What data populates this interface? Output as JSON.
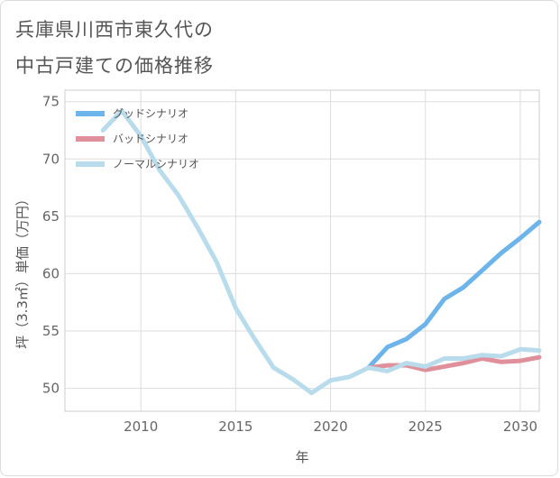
{
  "title": {
    "line1": "兵庫県川西市東久代の",
    "line2": "中古戸建ての価格推移"
  },
  "chart_data": {
    "type": "line",
    "title": "兵庫県川西市東久代の中古戸建ての価格推移",
    "xlabel": "年",
    "ylabel": "坪（3.3㎡）単価（万円）",
    "xlim": [
      2006,
      2031
    ],
    "ylim": [
      48,
      76
    ],
    "xticks": [
      2010,
      2015,
      2020,
      2025,
      2030
    ],
    "yticks": [
      50,
      55,
      60,
      65,
      70,
      75
    ],
    "grid": true,
    "legend_position": "top-left",
    "series": [
      {
        "name": "グッドシナリオ",
        "color": "#6cb4ea",
        "x": [
          2022,
          2023,
          2024,
          2025,
          2026,
          2027,
          2028,
          2029,
          2030,
          2031
        ],
        "values": [
          51.8,
          53.6,
          54.3,
          55.6,
          57.8,
          58.8,
          60.3,
          61.8,
          63.1,
          64.5
        ]
      },
      {
        "name": "バッドシナリオ",
        "color": "#e0909a",
        "x": [
          2022,
          2023,
          2024,
          2025,
          2026,
          2027,
          2028,
          2029,
          2030,
          2031
        ],
        "values": [
          51.8,
          52.0,
          52.0,
          51.6,
          51.9,
          52.2,
          52.6,
          52.3,
          52.4,
          52.7
        ]
      },
      {
        "name": "ノーマルシナリオ",
        "color": "#b8dcec",
        "x": [
          2008,
          2009,
          2010,
          2011,
          2012,
          2013,
          2014,
          2015,
          2016,
          2017,
          2018,
          2019,
          2020,
          2021,
          2022,
          2023,
          2024,
          2025,
          2026,
          2027,
          2028,
          2029,
          2030,
          2031
        ],
        "values": [
          72.5,
          74.2,
          72.0,
          69.0,
          66.8,
          64.0,
          61.0,
          57.0,
          54.3,
          51.8,
          50.8,
          49.6,
          50.7,
          51.0,
          51.8,
          51.5,
          52.2,
          51.9,
          52.6,
          52.6,
          52.9,
          52.8,
          53.4,
          53.3
        ]
      }
    ]
  }
}
